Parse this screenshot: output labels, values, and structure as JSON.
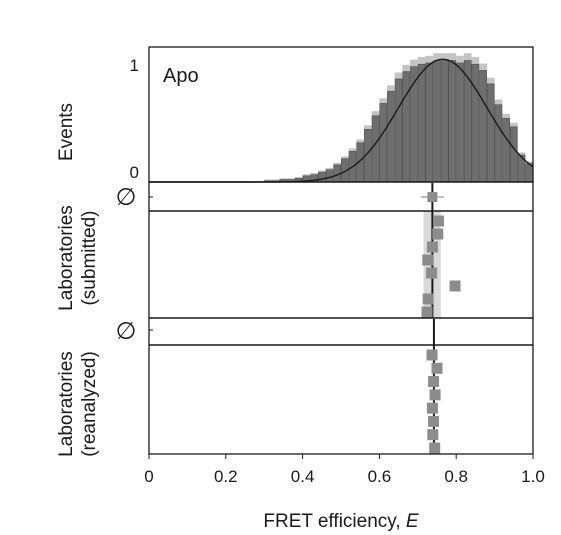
{
  "chart_data": [
    {
      "type": "bar",
      "panel_label": "Apo",
      "ylabel": "Events",
      "ylim": [
        0,
        1.1
      ],
      "yticks": [
        "0",
        "1"
      ],
      "xlim": [
        0,
        1.0
      ],
      "grid": false,
      "hist_bins": [
        0.3,
        0.32,
        0.34,
        0.36,
        0.38,
        0.4,
        0.42,
        0.44,
        0.46,
        0.48,
        0.5,
        0.52,
        0.54,
        0.56,
        0.58,
        0.6,
        0.62,
        0.64,
        0.66,
        0.68,
        0.7,
        0.72,
        0.74,
        0.76,
        0.78,
        0.8,
        0.82,
        0.84,
        0.86,
        0.88,
        0.9,
        0.92,
        0.94,
        0.96,
        0.98
      ],
      "hist_values": [
        0.01,
        0.01,
        0.02,
        0.02,
        0.03,
        0.05,
        0.06,
        0.08,
        0.1,
        0.14,
        0.19,
        0.25,
        0.32,
        0.43,
        0.54,
        0.64,
        0.74,
        0.84,
        0.9,
        0.94,
        0.96,
        0.97,
        0.99,
        0.99,
        0.99,
        0.97,
        0.99,
        0.96,
        0.91,
        0.8,
        0.63,
        0.52,
        0.45,
        0.22,
        0.15
      ],
      "fit_mean": 0.765,
      "fit_sigma": 0.115,
      "fit_peak": 1.0
    },
    {
      "type": "scatter",
      "ylabel_line1": "Laboratories",
      "ylabel_line2": "(submitted)",
      "mean_marker": "∅",
      "mean": {
        "x": 0.738,
        "err": 0.03
      },
      "mean_line_x": 0.738,
      "band": [
        0.715,
        0.76
      ],
      "points": [
        0.754,
        0.752,
        0.738,
        0.726,
        0.736,
        0.797,
        0.727,
        0.724
      ]
    },
    {
      "type": "scatter",
      "ylabel_line1": "Laboratories",
      "ylabel_line2": "(reanalyzed)",
      "mean_marker": "∅",
      "mean_line_x": 0.742,
      "points": [
        0.737,
        0.75,
        0.741,
        0.745,
        0.738,
        0.741,
        0.739,
        0.744
      ]
    }
  ],
  "xaxis": {
    "ticks": [
      "0",
      "0.2",
      "0.4",
      "0.6",
      "0.8",
      "1.0"
    ],
    "label": "FRET efficiency, ",
    "label_italic": "E"
  },
  "colors": {
    "bar_fill": "#6e6e6e",
    "bar_stroke": "#4a4a4a",
    "back_bar": "#c4c4c4",
    "band": "#d9d9d9",
    "marker": "#8c8c8c",
    "line": "#1a1a1a"
  }
}
